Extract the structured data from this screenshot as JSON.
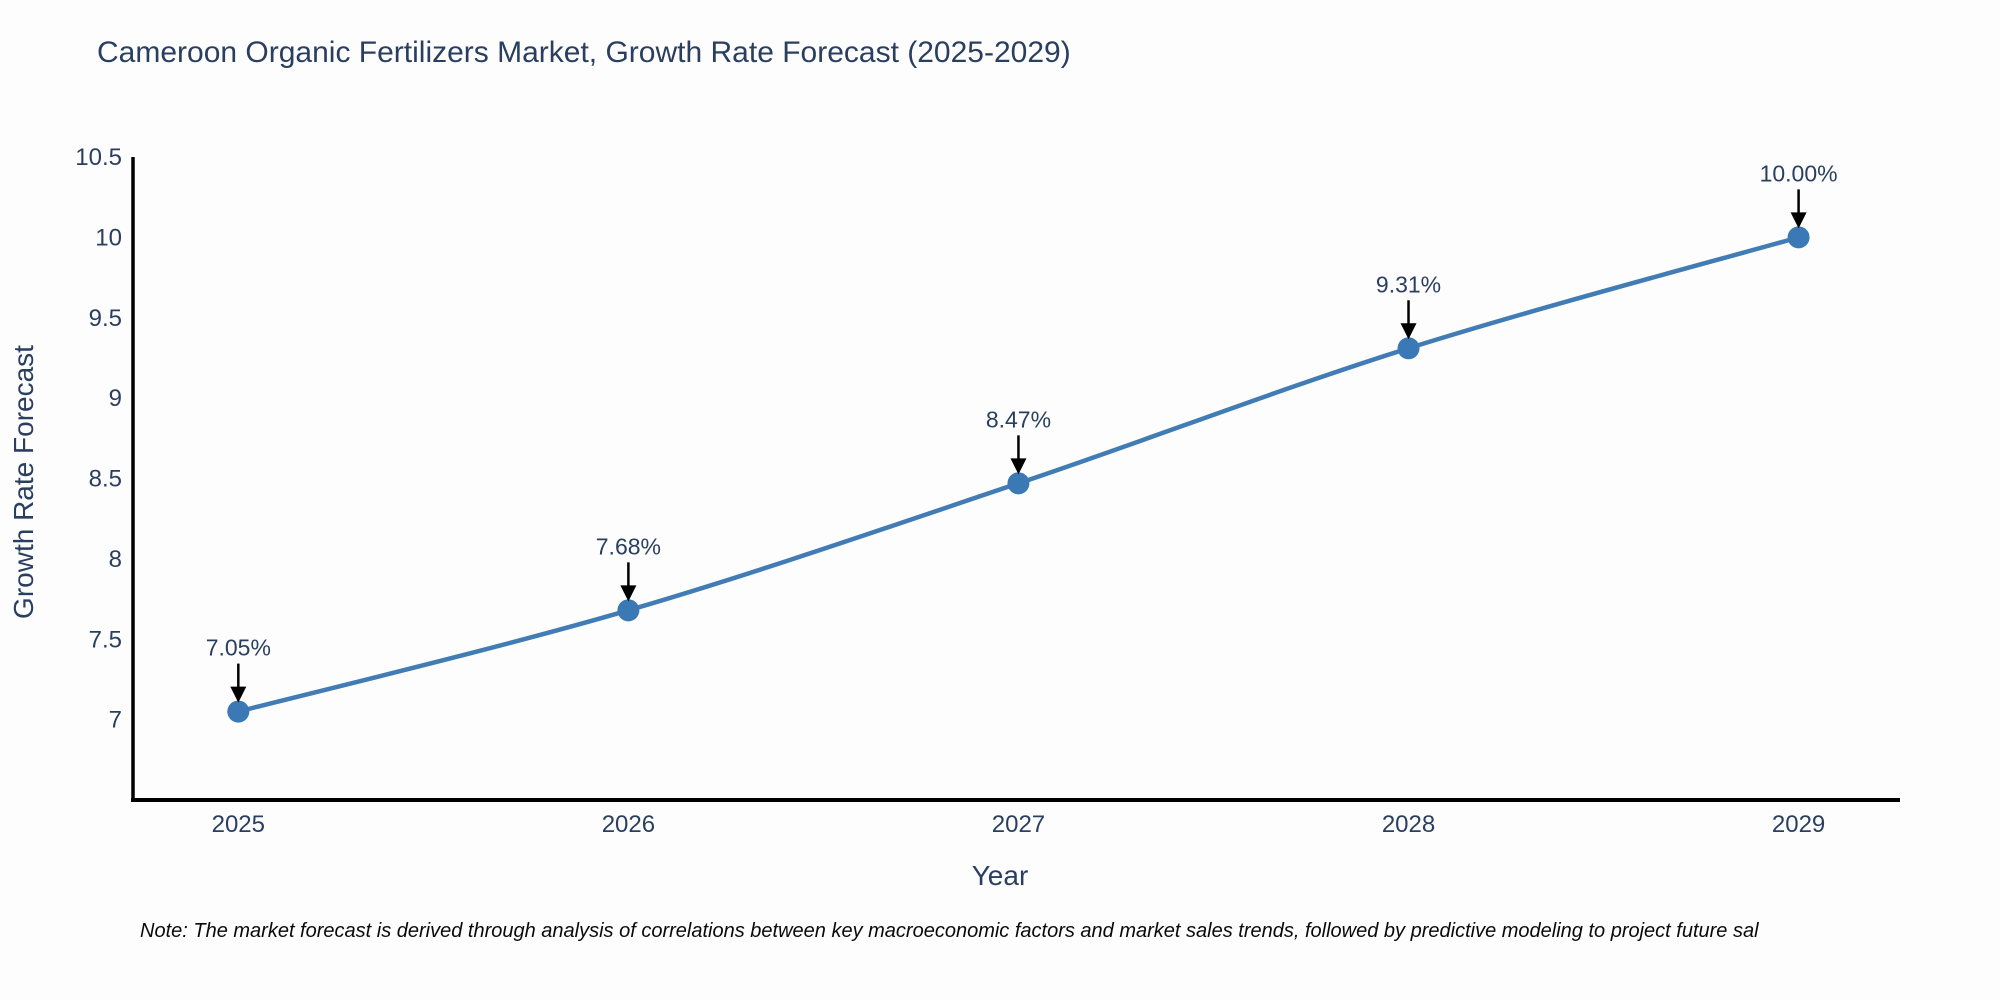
{
  "title": "Cameroon Organic Fertilizers Market, Growth Rate Forecast (2025-2029)",
  "footnote": "Note: The market forecast is derived through analysis of correlations between key macroeconomic factors and market sales trends, followed by predictive modeling to project future sal",
  "chart_data": {
    "type": "line",
    "title": "Cameroon Organic Fertilizers Market, Growth Rate Forecast (2025-2029)",
    "xlabel": "Year",
    "ylabel": "Growth Rate Forecast",
    "x": [
      2025,
      2026,
      2027,
      2028,
      2029
    ],
    "x_tick_labels": [
      "2025",
      "2026",
      "2027",
      "2028",
      "2029"
    ],
    "series": [
      {
        "name": "Growth Rate Forecast",
        "values": [
          7.05,
          7.68,
          8.47,
          9.31,
          10.0
        ]
      }
    ],
    "point_labels": [
      "7.05%",
      "7.68%",
      "8.47%",
      "9.31%",
      "10.00%"
    ],
    "y_ticks": [
      7,
      7.5,
      8,
      8.5,
      9,
      9.5,
      10,
      10.5
    ],
    "y_tick_labels": [
      "7",
      "7.5",
      "8",
      "8.5",
      "9",
      "9.5",
      "10",
      "10.5"
    ],
    "xlim": [
      2024.73,
      2029.26
    ],
    "ylim": [
      6.5,
      10.5
    ],
    "grid": false,
    "legend": "none",
    "marker_style": "circle",
    "annotation_style": "arrow-down",
    "colors": {
      "line": "#417cb5",
      "marker": "#3a79b5",
      "axis": "#000000",
      "tick_text": "#2a3f5f",
      "annotation_text": "#2a3f5f",
      "annotation_arrow": "#000000",
      "background": "#fdfdfd"
    }
  }
}
